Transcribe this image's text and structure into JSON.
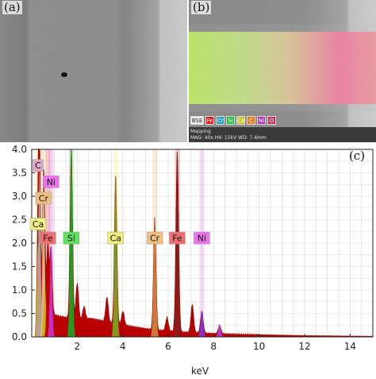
{
  "panels": {
    "a": {
      "label": "(a)"
    },
    "b": {
      "label": "(b)",
      "legend_chips": [
        {
          "text": "BSE",
          "color": "#eeeeee"
        },
        {
          "text": "Fe",
          "color": "#d42020"
        },
        {
          "text": "Cr",
          "color": "#20a0d0"
        },
        {
          "text": "Si",
          "color": "#20c040"
        },
        {
          "text": "Ca",
          "color": "#c8c820"
        },
        {
          "text": "C",
          "color": "#e08020"
        },
        {
          "text": "Ni",
          "color": "#b030c0"
        },
        {
          "text": "O",
          "color": "#c03060"
        }
      ],
      "info_title": "Mapping",
      "info_params": "MAG: 40x  HV: 15kV  WD: 7.4mm"
    },
    "c": {
      "label": "(c)"
    }
  },
  "chart_data": {
    "type": "area",
    "title": "",
    "xlabel": "keV",
    "ylabel": "",
    "xlim": [
      0,
      15
    ],
    "ylim": [
      0,
      4.0
    ],
    "xticks": [
      "2",
      "4",
      "6",
      "8",
      "10",
      "12",
      "14"
    ],
    "yticks": [
      "0.0",
      "0.5",
      "1.0",
      "1.5",
      "2.0",
      "2.5",
      "3.0",
      "3.5",
      "4.0"
    ],
    "grid": true,
    "background": [
      [
        0.15,
        0.0
      ],
      [
        0.3,
        0.2
      ],
      [
        0.5,
        0.55
      ],
      [
        0.8,
        0.6
      ],
      [
        1.0,
        0.48
      ],
      [
        1.2,
        0.45
      ],
      [
        1.5,
        0.42
      ],
      [
        1.8,
        0.38
      ],
      [
        2.0,
        0.36
      ],
      [
        2.3,
        0.38
      ],
      [
        2.6,
        0.4
      ],
      [
        3.0,
        0.36
      ],
      [
        3.5,
        0.3
      ],
      [
        4.0,
        0.26
      ],
      [
        4.5,
        0.22
      ],
      [
        5.0,
        0.18
      ],
      [
        5.5,
        0.15
      ],
      [
        6.0,
        0.13
      ],
      [
        6.5,
        0.11
      ],
      [
        7.0,
        0.1
      ],
      [
        7.5,
        0.085
      ],
      [
        8.0,
        0.075
      ],
      [
        9.0,
        0.06
      ],
      [
        10.0,
        0.05
      ],
      [
        11.0,
        0.04
      ],
      [
        12.0,
        0.03
      ],
      [
        13.0,
        0.025
      ],
      [
        14.0,
        0.02
      ],
      [
        15.0,
        0.015
      ]
    ],
    "peaks": [
      {
        "x": 0.28,
        "y": 2.0,
        "w": 0.05,
        "color": "#c8b400"
      },
      {
        "x": 0.34,
        "y": 3.6,
        "w": 0.05,
        "color": "#b4a0a0"
      },
      {
        "x": 0.52,
        "y": 3.3,
        "w": 0.05,
        "color": "#d8c088"
      },
      {
        "x": 0.58,
        "y": 1.1,
        "w": 0.05,
        "color": "#d0b000"
      },
      {
        "x": 0.71,
        "y": 2.0,
        "w": 0.05,
        "color": "#c00000"
      },
      {
        "x": 0.85,
        "y": 1.9,
        "w": 0.05,
        "color": "#cc30cc"
      },
      {
        "x": 1.74,
        "y": 4.0,
        "w": 0.055,
        "color": "#20a020"
      },
      {
        "x": 2.0,
        "y": 1.15,
        "w": 0.06,
        "color": "#b00000"
      },
      {
        "x": 2.3,
        "y": 0.65,
        "w": 0.06,
        "color": "#b00000"
      },
      {
        "x": 3.31,
        "y": 0.85,
        "w": 0.06,
        "color": "#b00000"
      },
      {
        "x": 3.69,
        "y": 3.45,
        "w": 0.055,
        "color": "#80a020"
      },
      {
        "x": 4.01,
        "y": 0.55,
        "w": 0.06,
        "color": "#b00000"
      },
      {
        "x": 5.41,
        "y": 2.55,
        "w": 0.055,
        "color": "#d08040"
      },
      {
        "x": 5.95,
        "y": 0.42,
        "w": 0.06,
        "color": "#b00000"
      },
      {
        "x": 6.4,
        "y": 3.95,
        "w": 0.06,
        "color": "#8a1a1a"
      },
      {
        "x": 7.06,
        "y": 0.7,
        "w": 0.06,
        "color": "#b00000"
      },
      {
        "x": 7.48,
        "y": 0.55,
        "w": 0.06,
        "color": "#8a30d0"
      },
      {
        "x": 8.26,
        "y": 0.25,
        "w": 0.06,
        "color": "#b040d0"
      }
    ],
    "element_lines": [
      {
        "x": 0.28,
        "color": "#f0e000"
      },
      {
        "x": 0.34,
        "color": "#e8a0c0"
      },
      {
        "x": 0.52,
        "color": "#f0d080"
      },
      {
        "x": 0.71,
        "color": "#e04040"
      },
      {
        "x": 0.85,
        "color": "#e060e0"
      },
      {
        "x": 1.74,
        "color": "#30c030"
      },
      {
        "x": 3.69,
        "color": "#f0f060"
      },
      {
        "x": 5.41,
        "color": "#f0c080"
      },
      {
        "x": 6.4,
        "color": "#c05050"
      },
      {
        "x": 7.48,
        "color": "#e080f0"
      }
    ],
    "element_labels": [
      {
        "text": "C",
        "x": 0.28,
        "y": 3.65,
        "color": "#e0a8c8"
      },
      {
        "text": "Ni",
        "x": 0.85,
        "y": 3.3,
        "color": "#f070f0"
      },
      {
        "text": "Cr",
        "x": 0.52,
        "y": 2.95,
        "color": "#f0c080"
      },
      {
        "text": "Ca",
        "x": 0.28,
        "y": 2.4,
        "color": "#f0f080"
      },
      {
        "text": "Fe",
        "x": 0.71,
        "y": 2.1,
        "color": "#f07070"
      },
      {
        "text": "Si",
        "x": 1.74,
        "y": 2.1,
        "color": "#60e060"
      },
      {
        "text": "Ca",
        "x": 3.69,
        "y": 2.1,
        "color": "#f0f080"
      },
      {
        "text": "Cr",
        "x": 5.41,
        "y": 2.1,
        "color": "#f0c080"
      },
      {
        "text": "Fe",
        "x": 6.4,
        "y": 2.1,
        "color": "#f07070"
      },
      {
        "text": "Ni",
        "x": 7.48,
        "y": 2.1,
        "color": "#f070f0"
      }
    ]
  }
}
